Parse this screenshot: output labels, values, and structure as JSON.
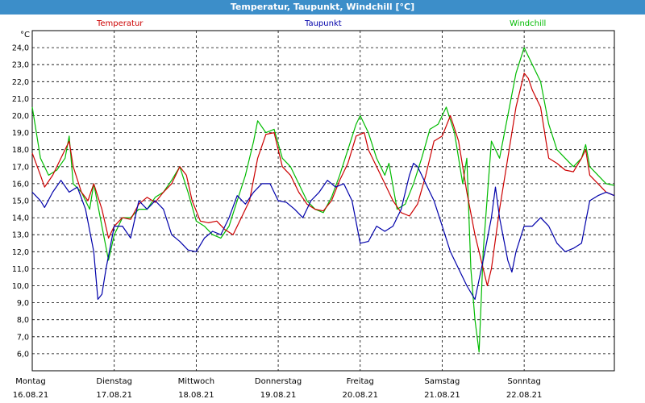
{
  "title": "Temperatur, Taupunkt, Windchill [°C]",
  "colors": {
    "titlebar": "#3c8ec9",
    "temperatur": "#cc0000",
    "taupunkt": "#0000aa",
    "windchill": "#00bb00"
  },
  "chart_data": {
    "type": "line",
    "title": "Temperatur, Taupunkt, Windchill [°C]",
    "ylabel": "°C",
    "ylim": [
      5.0,
      25.0
    ],
    "yticks": [
      "6,0",
      "7,0",
      "8,0",
      "9,0",
      "10,0",
      "11,0",
      "12,0",
      "13,0",
      "14,0",
      "15,0",
      "16,0",
      "17,0",
      "18,0",
      "19,0",
      "20,0",
      "21,0",
      "22,0",
      "23,0",
      "24,0"
    ],
    "xlim": [
      0,
      7.1
    ],
    "grid": true,
    "legend_position": "top",
    "days": [
      {
        "name": "Montag",
        "date": "16.08.21"
      },
      {
        "name": "Dienstag",
        "date": "17.08.21"
      },
      {
        "name": "Mittwoch",
        "date": "18.08.21"
      },
      {
        "name": "Donnerstag",
        "date": "19.08.21"
      },
      {
        "name": "Freitag",
        "date": "20.08.21"
      },
      {
        "name": "Samstag",
        "date": "21.08.21"
      },
      {
        "name": "Sonntag",
        "date": "22.08.21"
      }
    ],
    "series": [
      {
        "name": "Temperatur",
        "color": "#cc0000",
        "points": [
          [
            0,
            17.8
          ],
          [
            0.1,
            16.5
          ],
          [
            0.15,
            15.8
          ],
          [
            0.25,
            16.5
          ],
          [
            0.35,
            17.5
          ],
          [
            0.45,
            18.5
          ],
          [
            0.5,
            17.0
          ],
          [
            0.6,
            15.5
          ],
          [
            0.68,
            15.0
          ],
          [
            0.75,
            16.0
          ],
          [
            0.85,
            14.5
          ],
          [
            0.93,
            12.8
          ],
          [
            1.0,
            13.5
          ],
          [
            1.1,
            14.0
          ],
          [
            1.2,
            13.9
          ],
          [
            1.3,
            14.8
          ],
          [
            1.4,
            15.2
          ],
          [
            1.5,
            14.9
          ],
          [
            1.6,
            15.5
          ],
          [
            1.7,
            16.0
          ],
          [
            1.8,
            17.0
          ],
          [
            1.88,
            16.5
          ],
          [
            1.95,
            15.0
          ],
          [
            2.05,
            13.8
          ],
          [
            2.15,
            13.7
          ],
          [
            2.25,
            13.8
          ],
          [
            2.35,
            13.3
          ],
          [
            2.45,
            13.0
          ],
          [
            2.55,
            14.0
          ],
          [
            2.65,
            15.0
          ],
          [
            2.75,
            17.5
          ],
          [
            2.85,
            18.9
          ],
          [
            2.95,
            19.0
          ],
          [
            3.05,
            17.0
          ],
          [
            3.15,
            16.5
          ],
          [
            3.25,
            15.5
          ],
          [
            3.35,
            14.8
          ],
          [
            3.45,
            14.5
          ],
          [
            3.55,
            14.4
          ],
          [
            3.65,
            15.0
          ],
          [
            3.75,
            16.2
          ],
          [
            3.85,
            17.2
          ],
          [
            3.95,
            18.8
          ],
          [
            4.05,
            19.0
          ],
          [
            4.1,
            18.0
          ],
          [
            4.2,
            17.0
          ],
          [
            4.3,
            16.0
          ],
          [
            4.4,
            15.0
          ],
          [
            4.5,
            14.3
          ],
          [
            4.6,
            14.1
          ],
          [
            4.7,
            14.8
          ],
          [
            4.8,
            16.5
          ],
          [
            4.9,
            18.5
          ],
          [
            5.0,
            18.8
          ],
          [
            5.1,
            20.0
          ],
          [
            5.2,
            18.5
          ],
          [
            5.3,
            15.5
          ],
          [
            5.4,
            13.0
          ],
          [
            5.5,
            11.0
          ],
          [
            5.55,
            10.0
          ],
          [
            5.6,
            11.0
          ],
          [
            5.7,
            14.5
          ],
          [
            5.8,
            17.5
          ],
          [
            5.9,
            20.5
          ],
          [
            6.0,
            22.5
          ],
          [
            6.05,
            22.2
          ],
          [
            6.1,
            21.5
          ],
          [
            6.2,
            20.5
          ],
          [
            6.3,
            17.5
          ],
          [
            6.4,
            17.2
          ],
          [
            6.5,
            16.8
          ],
          [
            6.6,
            16.7
          ],
          [
            6.7,
            17.5
          ],
          [
            6.75,
            18.0
          ],
          [
            6.8,
            16.5
          ],
          [
            6.9,
            16.0
          ],
          [
            7.0,
            15.5
          ],
          [
            7.1,
            15.3
          ]
        ]
      },
      {
        "name": "Taupunkt",
        "color": "#0000aa",
        "points": [
          [
            0,
            15.5
          ],
          [
            0.1,
            15.0
          ],
          [
            0.15,
            14.6
          ],
          [
            0.25,
            15.5
          ],
          [
            0.35,
            16.2
          ],
          [
            0.45,
            15.5
          ],
          [
            0.55,
            15.8
          ],
          [
            0.65,
            14.5
          ],
          [
            0.75,
            12.0
          ],
          [
            0.8,
            9.2
          ],
          [
            0.85,
            9.5
          ],
          [
            0.9,
            11.0
          ],
          [
            1.0,
            13.5
          ],
          [
            1.1,
            13.5
          ],
          [
            1.2,
            12.8
          ],
          [
            1.3,
            15.0
          ],
          [
            1.4,
            14.5
          ],
          [
            1.5,
            15.0
          ],
          [
            1.6,
            14.5
          ],
          [
            1.7,
            13.0
          ],
          [
            1.8,
            12.6
          ],
          [
            1.9,
            12.1
          ],
          [
            2.0,
            12.0
          ],
          [
            2.1,
            12.8
          ],
          [
            2.2,
            13.2
          ],
          [
            2.3,
            13.0
          ],
          [
            2.4,
            14.0
          ],
          [
            2.5,
            15.3
          ],
          [
            2.6,
            14.8
          ],
          [
            2.7,
            15.5
          ],
          [
            2.8,
            16.0
          ],
          [
            2.9,
            16.0
          ],
          [
            3.0,
            15.0
          ],
          [
            3.1,
            14.9
          ],
          [
            3.2,
            14.5
          ],
          [
            3.3,
            14.0
          ],
          [
            3.4,
            15.0
          ],
          [
            3.5,
            15.5
          ],
          [
            3.6,
            16.2
          ],
          [
            3.7,
            15.8
          ],
          [
            3.8,
            16.0
          ],
          [
            3.9,
            15.0
          ],
          [
            4.0,
            12.5
          ],
          [
            4.1,
            12.6
          ],
          [
            4.2,
            13.5
          ],
          [
            4.3,
            13.2
          ],
          [
            4.4,
            13.5
          ],
          [
            4.5,
            14.5
          ],
          [
            4.6,
            16.5
          ],
          [
            4.65,
            17.2
          ],
          [
            4.7,
            17.0
          ],
          [
            4.8,
            16.0
          ],
          [
            4.9,
            15.0
          ],
          [
            5.0,
            13.5
          ],
          [
            5.1,
            12.0
          ],
          [
            5.2,
            11.0
          ],
          [
            5.3,
            10.0
          ],
          [
            5.4,
            9.2
          ],
          [
            5.5,
            11.5
          ],
          [
            5.6,
            14.0
          ],
          [
            5.65,
            15.8
          ],
          [
            5.7,
            14.0
          ],
          [
            5.8,
            11.5
          ],
          [
            5.85,
            10.8
          ],
          [
            5.9,
            12.0
          ],
          [
            6.0,
            13.5
          ],
          [
            6.1,
            13.5
          ],
          [
            6.2,
            14.0
          ],
          [
            6.3,
            13.5
          ],
          [
            6.4,
            12.5
          ],
          [
            6.5,
            12.0
          ],
          [
            6.6,
            12.2
          ],
          [
            6.7,
            12.5
          ],
          [
            6.8,
            15.0
          ],
          [
            6.9,
            15.3
          ],
          [
            7.0,
            15.5
          ],
          [
            7.1,
            15.3
          ]
        ]
      },
      {
        "name": "Windchill",
        "color": "#00bb00",
        "points": [
          [
            0,
            20.5
          ],
          [
            0.1,
            17.5
          ],
          [
            0.2,
            16.5
          ],
          [
            0.3,
            16.8
          ],
          [
            0.4,
            17.5
          ],
          [
            0.45,
            18.8
          ],
          [
            0.5,
            16.0
          ],
          [
            0.6,
            15.5
          ],
          [
            0.7,
            14.5
          ],
          [
            0.75,
            16.0
          ],
          [
            0.85,
            13.5
          ],
          [
            0.93,
            11.5
          ],
          [
            1.0,
            13.0
          ],
          [
            1.1,
            14.0
          ],
          [
            1.2,
            14.0
          ],
          [
            1.3,
            14.5
          ],
          [
            1.4,
            14.5
          ],
          [
            1.5,
            15.2
          ],
          [
            1.6,
            15.5
          ],
          [
            1.7,
            16.2
          ],
          [
            1.8,
            17.0
          ],
          [
            1.9,
            15.5
          ],
          [
            2.0,
            13.8
          ],
          [
            2.1,
            13.5
          ],
          [
            2.2,
            13.0
          ],
          [
            2.3,
            12.8
          ],
          [
            2.4,
            13.5
          ],
          [
            2.5,
            15.0
          ],
          [
            2.6,
            16.5
          ],
          [
            2.7,
            18.5
          ],
          [
            2.75,
            19.7
          ],
          [
            2.85,
            19.0
          ],
          [
            2.95,
            19.2
          ],
          [
            3.05,
            17.5
          ],
          [
            3.15,
            17.0
          ],
          [
            3.25,
            16.0
          ],
          [
            3.35,
            15.0
          ],
          [
            3.45,
            14.5
          ],
          [
            3.55,
            14.3
          ],
          [
            3.65,
            15.2
          ],
          [
            3.75,
            16.5
          ],
          [
            3.85,
            18.0
          ],
          [
            3.95,
            19.5
          ],
          [
            4.0,
            20.0
          ],
          [
            4.1,
            19.0
          ],
          [
            4.2,
            17.5
          ],
          [
            4.3,
            16.5
          ],
          [
            4.35,
            17.2
          ],
          [
            4.45,
            14.5
          ],
          [
            4.55,
            14.8
          ],
          [
            4.65,
            16.0
          ],
          [
            4.75,
            17.5
          ],
          [
            4.85,
            19.2
          ],
          [
            4.95,
            19.5
          ],
          [
            5.05,
            20.5
          ],
          [
            5.15,
            19.0
          ],
          [
            5.25,
            16.0
          ],
          [
            5.3,
            17.5
          ],
          [
            5.35,
            11.0
          ],
          [
            5.4,
            8.0
          ],
          [
            5.45,
            6.1
          ],
          [
            5.5,
            12.0
          ],
          [
            5.6,
            18.5
          ],
          [
            5.7,
            17.5
          ],
          [
            5.8,
            20.0
          ],
          [
            5.9,
            22.5
          ],
          [
            6.0,
            24.0
          ],
          [
            6.1,
            23.0
          ],
          [
            6.2,
            22.0
          ],
          [
            6.3,
            19.5
          ],
          [
            6.4,
            18.0
          ],
          [
            6.5,
            17.5
          ],
          [
            6.6,
            17.0
          ],
          [
            6.7,
            17.5
          ],
          [
            6.75,
            18.3
          ],
          [
            6.8,
            17.0
          ],
          [
            6.9,
            16.5
          ],
          [
            7.0,
            16.0
          ],
          [
            7.1,
            15.9
          ]
        ]
      }
    ]
  }
}
